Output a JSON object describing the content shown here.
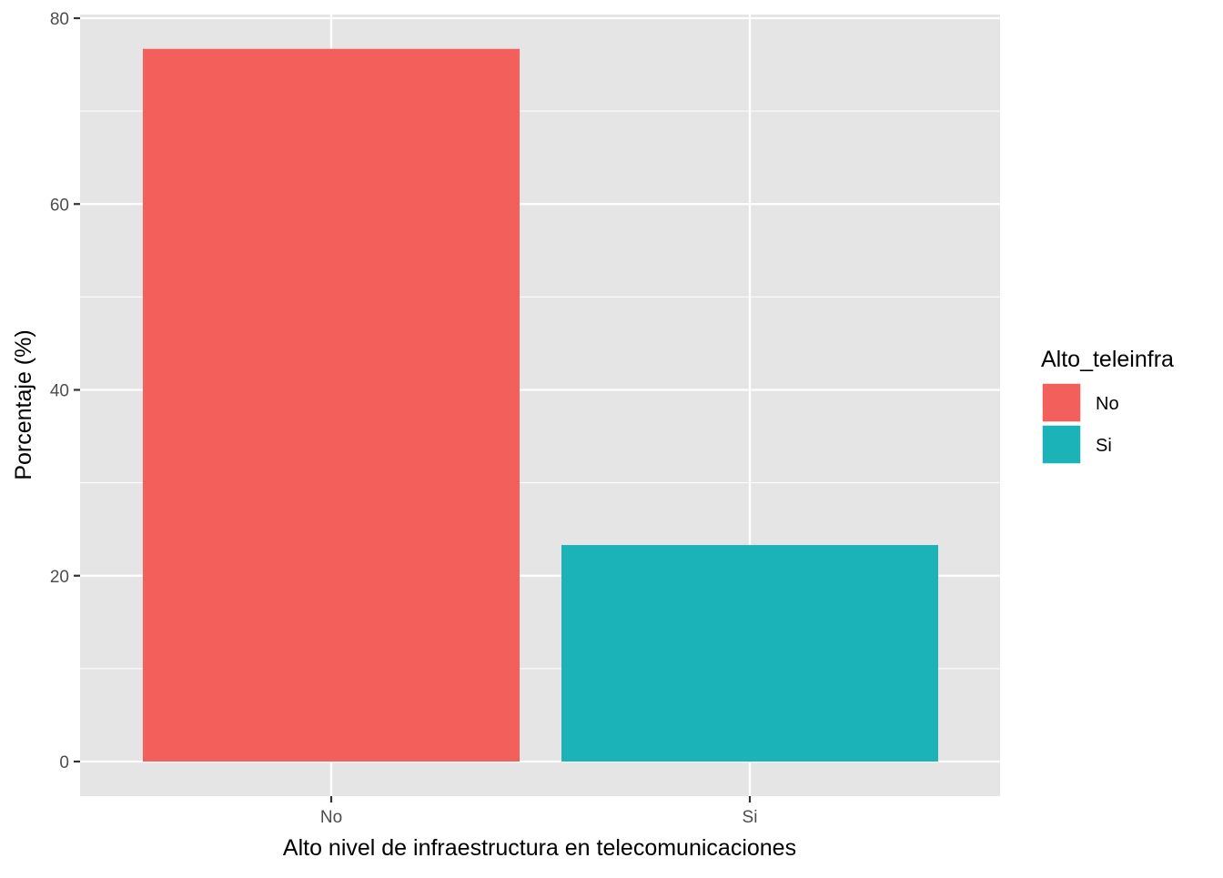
{
  "chart_data": {
    "type": "bar",
    "categories": [
      "No",
      "Si"
    ],
    "values": [
      76.7,
      23.3
    ],
    "xlabel": "Alto nivel de infraestructura en telecomunicaciones",
    "ylabel": "Porcentaje (%)",
    "ylim": [
      0,
      80
    ],
    "yticks": [
      0,
      20,
      40,
      60,
      80
    ],
    "grid": true,
    "legend": {
      "title": "Alto_teleinfra",
      "placement": "right",
      "entries": [
        "No",
        "Si"
      ]
    },
    "colors": [
      "#F3605C",
      "#1BB3B8"
    ],
    "panel_background": "#E5E5E5",
    "grid_color": "#FFFFFF"
  }
}
